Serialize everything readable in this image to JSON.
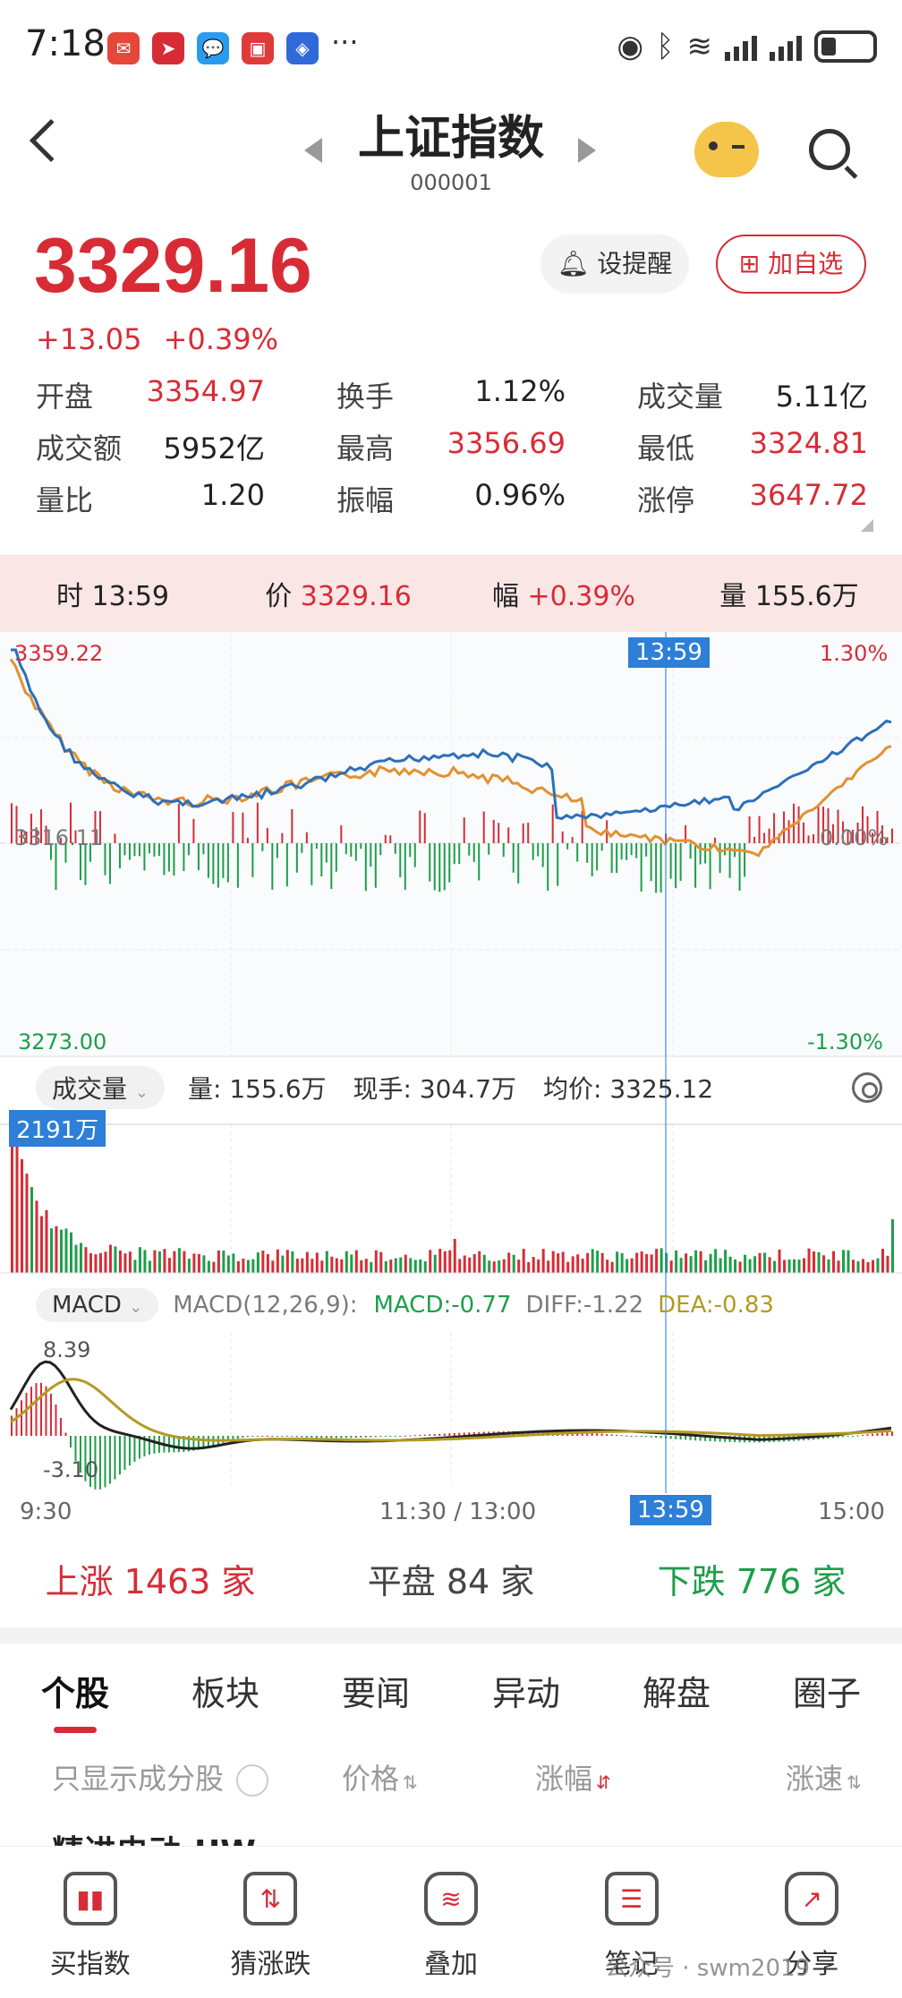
{
  "status_bar": {
    "time": "7:18",
    "more": "···"
  },
  "header": {
    "title": "上证指数",
    "code": "000001"
  },
  "quote": {
    "price": "3329.16",
    "change": "+13.05",
    "change_pct": "+0.39%",
    "alert_label": "设提醒",
    "add_label": "加自选"
  },
  "stats": [
    [
      {
        "label": "开盘",
        "value": "3354.97",
        "color": "red"
      },
      {
        "label": "换手",
        "value": "1.12%",
        "color": "black"
      },
      {
        "label": "成交量",
        "value": "5.11亿",
        "color": "black"
      }
    ],
    [
      {
        "label": "成交额",
        "value": "5952亿",
        "color": "black"
      },
      {
        "label": "最高",
        "value": "3356.69",
        "color": "red"
      },
      {
        "label": "最低",
        "value": "3324.81",
        "color": "red"
      }
    ],
    [
      {
        "label": "量比",
        "value": "1.20",
        "color": "black"
      },
      {
        "label": "振幅",
        "value": "0.96%",
        "color": "black"
      },
      {
        "label": "涨停",
        "value": "3647.72",
        "color": "red"
      }
    ]
  ],
  "infobar": {
    "time_label": "时",
    "time": "13:59",
    "price_label": "价",
    "price": "3329.16",
    "pct_label": "幅",
    "pct": "+0.39%",
    "vol_label": "量",
    "vol": "155.6万"
  },
  "chart_labels": {
    "price_high": "3359.22",
    "price_mid": "3316.11",
    "price_low": "3273.00",
    "pct_high": "1.30%",
    "pct_mid": "0.00%",
    "pct_low": "-1.30%",
    "crosshair_time": "13:59",
    "vol_max": "2191万",
    "macd_high": "8.39",
    "macd_low": "-3.10"
  },
  "volume_bar": {
    "selector": "成交量",
    "vol": "量: 155.6万",
    "now": "现手: 304.7万",
    "avg": "均价: 3325.12"
  },
  "macd_bar": {
    "selector": "MACD",
    "params": "MACD(12,26,9):",
    "macd": "MACD:-0.77",
    "diff": "DIFF:-1.22",
    "dea": "DEA:-0.83"
  },
  "x_axis": {
    "start": "9:30",
    "mid": "11:30 / 13:00",
    "cursor": "13:59",
    "end": "15:00"
  },
  "breadth": {
    "up": "上涨 1463 家",
    "flat": "平盘 84 家",
    "down": "下跌 776 家"
  },
  "tabs": [
    "个股",
    "板块",
    "要闻",
    "异动",
    "解盘",
    "圈子"
  ],
  "filter": {
    "only": "只显示成分股",
    "price": "价格",
    "change": "涨幅",
    "speed": "涨速"
  },
  "peek_row": "精进电动-UW",
  "bottom_nav": [
    {
      "label": "买指数",
      "icon": "chart-icon"
    },
    {
      "label": "猜涨跌",
      "icon": "updown-icon"
    },
    {
      "label": "叠加",
      "icon": "layers-icon"
    },
    {
      "label": "笔记",
      "icon": "note-icon"
    },
    {
      "label": "分享",
      "icon": "share-icon"
    }
  ],
  "watermark": "公众号 · swm2019",
  "colors": {
    "up": "#d72c36",
    "down": "#1e9e4a",
    "price_line": "#2d6fb8",
    "avg_line": "#e3902f",
    "crosshair": "#2d7fd8"
  }
}
